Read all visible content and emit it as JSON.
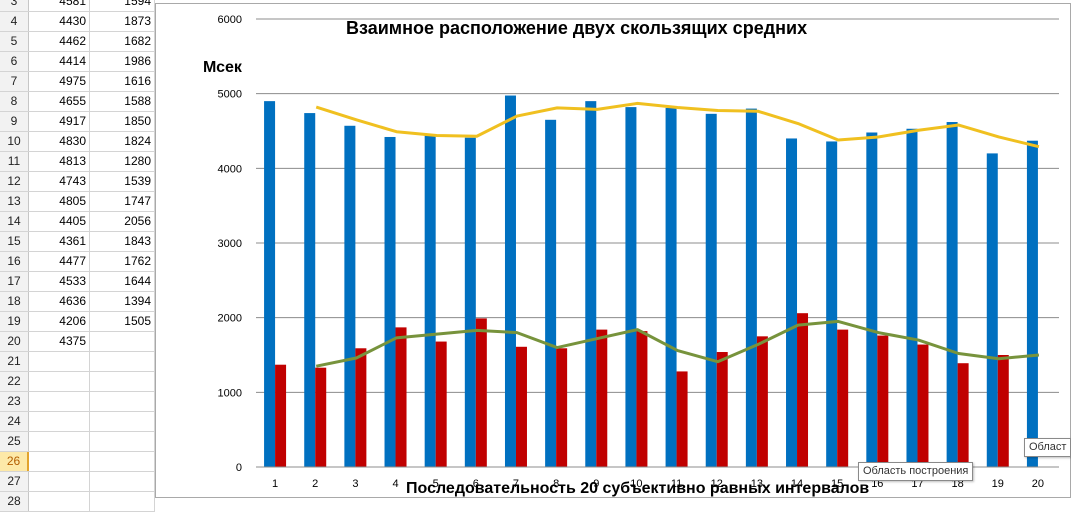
{
  "spreadsheet": {
    "active_row": 26,
    "rows": [
      {
        "n": "3",
        "a": "4581",
        "b": "1594"
      },
      {
        "n": "4",
        "a": "4430",
        "b": "1873"
      },
      {
        "n": "5",
        "a": "4462",
        "b": "1682"
      },
      {
        "n": "6",
        "a": "4414",
        "b": "1986"
      },
      {
        "n": "7",
        "a": "4975",
        "b": "1616"
      },
      {
        "n": "8",
        "a": "4655",
        "b": "1588"
      },
      {
        "n": "9",
        "a": "4917",
        "b": "1850"
      },
      {
        "n": "10",
        "a": "4830",
        "b": "1824"
      },
      {
        "n": "11",
        "a": "4813",
        "b": "1280"
      },
      {
        "n": "12",
        "a": "4743",
        "b": "1539"
      },
      {
        "n": "13",
        "a": "4805",
        "b": "1747"
      },
      {
        "n": "14",
        "a": "4405",
        "b": "2056"
      },
      {
        "n": "15",
        "a": "4361",
        "b": "1843"
      },
      {
        "n": "16",
        "a": "4477",
        "b": "1762"
      },
      {
        "n": "17",
        "a": "4533",
        "b": "1644"
      },
      {
        "n": "18",
        "a": "4636",
        "b": "1394"
      },
      {
        "n": "19",
        "a": "4206",
        "b": "1505"
      },
      {
        "n": "20",
        "a": "4375",
        "b": ""
      },
      {
        "n": "21",
        "a": "",
        "b": ""
      },
      {
        "n": "22",
        "a": "",
        "b": ""
      },
      {
        "n": "23",
        "a": "",
        "b": ""
      },
      {
        "n": "24",
        "a": "",
        "b": ""
      },
      {
        "n": "25",
        "a": "",
        "b": ""
      },
      {
        "n": "26",
        "a": "",
        "b": ""
      },
      {
        "n": "27",
        "a": "",
        "b": ""
      },
      {
        "n": "28",
        "a": "",
        "b": ""
      }
    ]
  },
  "tooltips": {
    "plot_area": "Область построения",
    "chart_area_partial": "Област"
  },
  "chart_data": {
    "type": "bar",
    "title": "Взаимное расположение двух скользящих средних",
    "ylabel": "Мсек",
    "xlabel": "Последовательность 20 субъективно равных интервалов",
    "categories": [
      "1",
      "2",
      "3",
      "4",
      "5",
      "6",
      "7",
      "8",
      "9",
      "10",
      "11",
      "12",
      "13",
      "14",
      "15",
      "16",
      "17",
      "18",
      "19",
      "20"
    ],
    "ylim": [
      0,
      6000
    ],
    "yticks": [
      "0",
      "1000",
      "2000",
      "3000",
      "4000",
      "5000",
      "6000"
    ],
    "grid": true,
    "series": [
      {
        "kind": "bar",
        "color": "#0070c0",
        "values": [
          4900,
          4740,
          4570,
          4420,
          4440,
          4410,
          4975,
          4650,
          4900,
          4820,
          4810,
          4730,
          4800,
          4400,
          4360,
          4480,
          4530,
          4620,
          4200,
          4370
        ]
      },
      {
        "kind": "bar",
        "color": "#c00000",
        "values": [
          1370,
          1330,
          1590,
          1870,
          1680,
          1990,
          1610,
          1590,
          1840,
          1820,
          1280,
          1540,
          1750,
          2060,
          1840,
          1760,
          1640,
          1390,
          1500,
          null
        ]
      },
      {
        "kind": "line",
        "color": "#f0c020",
        "values": [
          null,
          4820,
          4650,
          4490,
          4440,
          4430,
          4700,
          4810,
          4790,
          4870,
          4815,
          4775,
          4765,
          4600,
          4380,
          4420,
          4510,
          4580,
          4420,
          4290
        ]
      },
      {
        "kind": "line",
        "color": "#77933c",
        "values": [
          null,
          1350,
          1460,
          1730,
          1780,
          1830,
          1800,
          1600,
          1720,
          1840,
          1560,
          1410,
          1640,
          1900,
          1950,
          1800,
          1700,
          1520,
          1450,
          1500
        ]
      }
    ]
  }
}
